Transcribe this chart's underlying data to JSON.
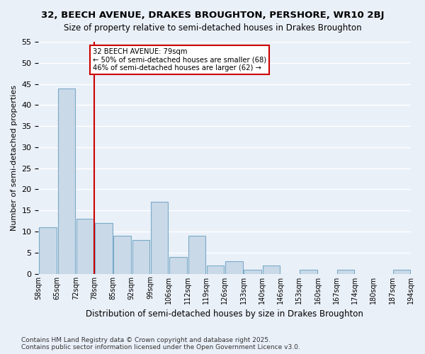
{
  "title1": "32, BEECH AVENUE, DRAKES BROUGHTON, PERSHORE, WR10 2BJ",
  "title2": "Size of property relative to semi-detached houses in Drakes Broughton",
  "xlabel": "Distribution of semi-detached houses by size in Drakes Broughton",
  "ylabel": "Number of semi-detached properties",
  "footer": "Contains HM Land Registry data © Crown copyright and database right 2025.\nContains public sector information licensed under the Open Government Licence v3.0.",
  "bin_lefts": [
    58,
    65,
    72,
    79,
    86,
    93,
    100,
    107,
    114,
    121,
    128,
    135,
    142,
    149,
    156,
    163,
    170,
    177,
    184,
    191
  ],
  "bin_width": 7,
  "bin_labels": [
    "58sqm",
    "65sqm",
    "72sqm",
    "78sqm",
    "85sqm",
    "92sqm",
    "99sqm",
    "106sqm",
    "112sqm",
    "119sqm",
    "126sqm",
    "133sqm",
    "140sqm",
    "146sqm",
    "153sqm",
    "160sqm",
    "167sqm",
    "174sqm",
    "180sqm",
    "187sqm",
    "194sqm"
  ],
  "values": [
    11,
    44,
    13,
    12,
    9,
    8,
    17,
    4,
    9,
    2,
    3,
    1,
    2,
    0,
    1,
    0,
    1,
    0,
    0,
    1
  ],
  "bar_color": "#c9d9e8",
  "bar_edge_color": "#7aaac8",
  "bg_color": "#eaf0f8",
  "grid_color": "#ffffff",
  "vline_x": 79,
  "vline_color": "#cc0000",
  "annotation_text": "32 BEECH AVENUE: 79sqm\n← 50% of semi-detached houses are smaller (68)\n46% of semi-detached houses are larger (62) →",
  "annotation_box_color": "#cc0000",
  "xlim": [
    58,
    198
  ],
  "ylim": [
    0,
    55
  ],
  "yticks": [
    0,
    5,
    10,
    15,
    20,
    25,
    30,
    35,
    40,
    45,
    50,
    55
  ]
}
